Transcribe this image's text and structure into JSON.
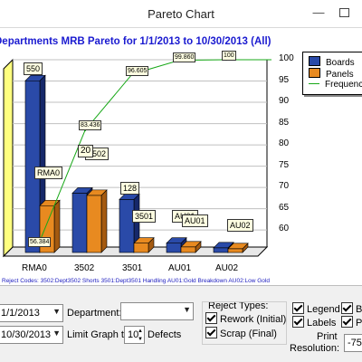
{
  "window": {
    "title": "Pareto Chart",
    "minimize_glyph": "—"
  },
  "chart_title": "Departments MRB Pareto for 1/1/2013 to 10/30/2013 (All)",
  "legend": {
    "items": [
      "Boards",
      "Panels",
      "Frequency"
    ]
  },
  "chart_data": {
    "type": "bar",
    "categories": [
      "RMA0",
      "3502",
      "3501",
      "AU01",
      "AU02"
    ],
    "series": [
      {
        "name": "Boards",
        "values": [
          550,
          190,
          170,
          30,
          15
        ],
        "color": "#2a4aa8"
      },
      {
        "name": "Panels",
        "values": [
          150,
          183,
          30,
          18,
          12
        ],
        "color": "#e88a20"
      },
      {
        "name": "Frequency",
        "type": "line",
        "values": [
          56.384,
          83.436,
          96.605,
          99.86,
          100
        ],
        "color": "#18a818"
      }
    ],
    "y_right_ticks": [
      "100",
      "95",
      "90",
      "85",
      "80",
      "75",
      "70",
      "65",
      "60"
    ],
    "ylim_right": [
      56,
      100
    ],
    "data_labels": [
      "550",
      "RMA0",
      "3502",
      "128",
      "3501",
      "AU01",
      "AU01",
      "AU02"
    ],
    "line_labels": [
      "56.384",
      "83.436",
      "96.605",
      "99.860",
      "100"
    ],
    "cumulative_partial_label": "20"
  },
  "reject_codes_text": "Reject Codes: 3502:Dept3502 Shorts 3501:Dept3501 Handling AU01:Gold Breakdown AU02:Low Gold",
  "controls": {
    "start_date": "1/1/2013",
    "end_date": "10/30/2013",
    "department_label": "Department:",
    "department_value": "",
    "limit_label": "Limit Graph to",
    "limit_value": "10",
    "defects_label": "Defects",
    "reject_types_label": "Reject Types:",
    "reject_types": [
      "Rework (Initial)",
      "Scrap (Final)"
    ],
    "legend_chk": "Legend",
    "labels_chk": "Labels",
    "b_chk": "B",
    "p_chk": "P",
    "print_label_1": "Print",
    "print_label_2": "Resolution:",
    "print_value": "-75"
  }
}
